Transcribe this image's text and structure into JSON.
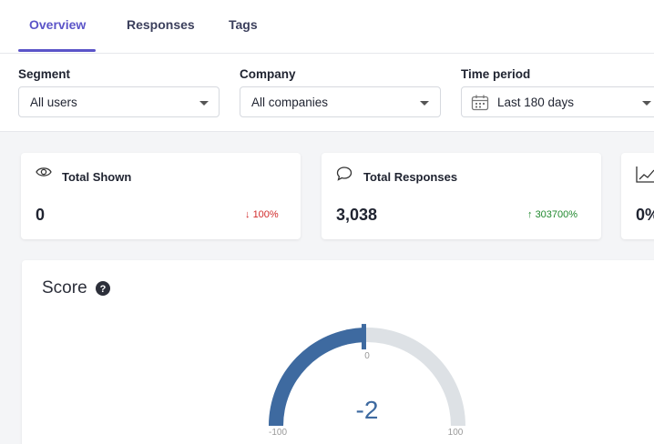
{
  "tabs": [
    {
      "label": "Overview",
      "active": true
    },
    {
      "label": "Responses",
      "active": false
    },
    {
      "label": "Tags",
      "active": false
    }
  ],
  "filters": {
    "segment": {
      "label": "Segment",
      "value": "All users"
    },
    "company": {
      "label": "Company",
      "value": "All companies"
    },
    "time_period": {
      "label": "Time period",
      "value": "Last 180 days",
      "icon": "calendar-icon"
    }
  },
  "stats": [
    {
      "title": "Total Shown",
      "icon": "eye-icon",
      "value": "0",
      "delta": "100%",
      "direction": "down",
      "delta_color": "#d12b2b"
    },
    {
      "title": "Total Responses",
      "icon": "speech-bubble-icon",
      "value": "3,038",
      "delta": "303700%",
      "direction": "up",
      "delta_color": "#21892f"
    },
    {
      "title": "",
      "icon": "trend-chart-icon",
      "value": "0%"
    }
  ],
  "score": {
    "title": "Score",
    "value": "-2",
    "value_numeric": -2,
    "min_label": "-100",
    "mid_label": "0",
    "max_label": "100",
    "fill_color": "#3e6aa0",
    "track_color": "#dde1e5"
  },
  "colors": {
    "accent": "#5b54c8"
  }
}
